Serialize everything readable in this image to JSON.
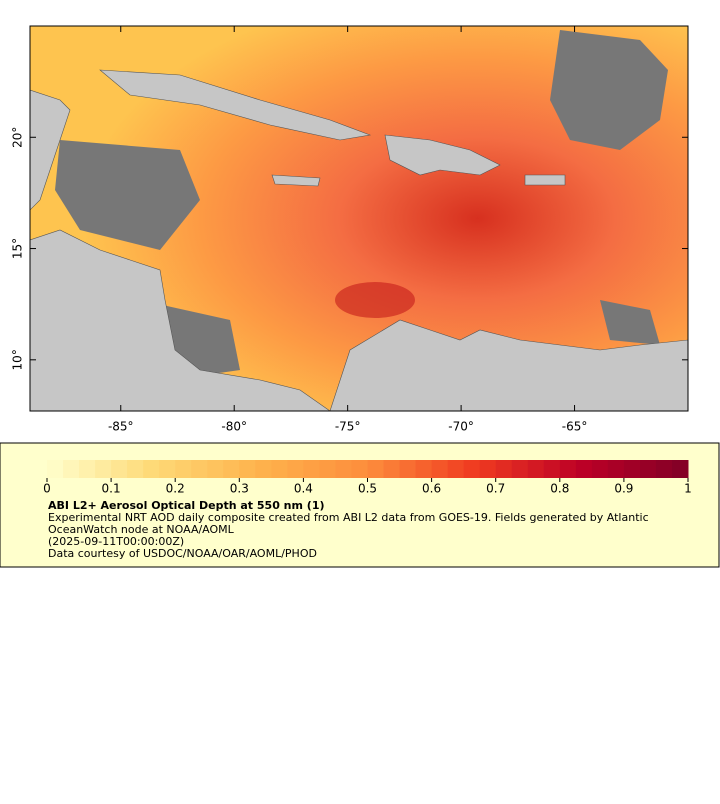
{
  "map": {
    "xlim": [
      -89,
      -60
    ],
    "ylim": [
      7.7,
      25
    ],
    "xticks": [
      {
        "value": -85,
        "label": "-85°"
      },
      {
        "value": -80,
        "label": "-80°"
      },
      {
        "value": -75,
        "label": "-75°"
      },
      {
        "value": -70,
        "label": "-70°"
      },
      {
        "value": -65,
        "label": "-65°"
      }
    ],
    "yticks": [
      {
        "value": 10,
        "label": "10°"
      },
      {
        "value": 15,
        "label": "15°"
      },
      {
        "value": 20,
        "label": "20°"
      }
    ],
    "colormap": [
      "#ffffcc",
      "#fed976",
      "#feb24c",
      "#fd8d3c",
      "#f03b20",
      "#bd0026",
      "#800026"
    ]
  },
  "colorbar": {
    "lim": [
      0,
      1
    ],
    "ticks": [
      0,
      0.1,
      0.2,
      0.3,
      0.4,
      0.5,
      0.6,
      0.7,
      0.8,
      0.9,
      1
    ]
  },
  "legend": {
    "title": "ABI L2+ Aerosol Optical Depth at 550 nm (1)",
    "description": "Experimental NRT AOD daily composite created from ABI L2 data from GOES-19. Fields generated by Atlantic OceanWatch node at NOAA/AOML",
    "time": "(2025-09-11T00:00:00Z)",
    "credit": "Data courtesy of USDOC/NOAA/OAR/AOML/PHOD"
  }
}
